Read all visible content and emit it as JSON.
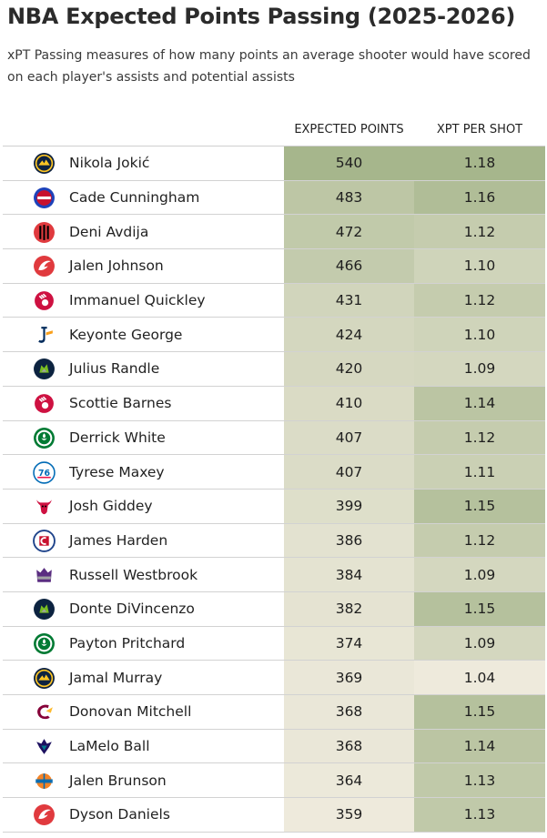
{
  "title": "NBA Expected Points Passing (2025-2026)",
  "subtitle": "xPT Passing measures of how many points an average shooter would have scored on each player's assists and potential assists",
  "columns": {
    "expected_points": "EXPECTED POINTS",
    "xpt_per_shot": "XPT PER SHOT"
  },
  "colors": {
    "low": "#eeeadc",
    "high": "#a6b68c",
    "text": "#222222"
  },
  "chart_data": {
    "type": "table",
    "title": "NBA Expected Points Passing (2025-2026)",
    "columns": [
      "EXPECTED POINTS",
      "XPT PER SHOT"
    ],
    "rows": [
      {
        "player": "Nikola Jokić",
        "team_logo": "denver-nuggets-logo",
        "expected_points": 540,
        "xpt_per_shot": "1.18"
      },
      {
        "player": "Cade Cunningham",
        "team_logo": "detroit-pistons-logo",
        "expected_points": 483,
        "xpt_per_shot": "1.16"
      },
      {
        "player": "Deni Avdija",
        "team_logo": "portland-trail-blazers-logo",
        "expected_points": 472,
        "xpt_per_shot": "1.12"
      },
      {
        "player": "Jalen Johnson",
        "team_logo": "atlanta-hawks-logo",
        "expected_points": 466,
        "xpt_per_shot": "1.10"
      },
      {
        "player": "Immanuel Quickley",
        "team_logo": "toronto-raptors-logo",
        "expected_points": 431,
        "xpt_per_shot": "1.12"
      },
      {
        "player": "Keyonte George",
        "team_logo": "utah-jazz-logo",
        "expected_points": 424,
        "xpt_per_shot": "1.10"
      },
      {
        "player": "Julius Randle",
        "team_logo": "minnesota-timberwolves-logo",
        "expected_points": 420,
        "xpt_per_shot": "1.09"
      },
      {
        "player": "Scottie Barnes",
        "team_logo": "toronto-raptors-logo",
        "expected_points": 410,
        "xpt_per_shot": "1.14"
      },
      {
        "player": "Derrick White",
        "team_logo": "boston-celtics-logo",
        "expected_points": 407,
        "xpt_per_shot": "1.12"
      },
      {
        "player": "Tyrese Maxey",
        "team_logo": "philadelphia-76ers-logo",
        "expected_points": 407,
        "xpt_per_shot": "1.11"
      },
      {
        "player": "Josh Giddey",
        "team_logo": "chicago-bulls-logo",
        "expected_points": 399,
        "xpt_per_shot": "1.15"
      },
      {
        "player": "James Harden",
        "team_logo": "la-clippers-logo",
        "expected_points": 386,
        "xpt_per_shot": "1.12"
      },
      {
        "player": "Russell Westbrook",
        "team_logo": "sacramento-kings-logo",
        "expected_points": 384,
        "xpt_per_shot": "1.09"
      },
      {
        "player": "Donte DiVincenzo",
        "team_logo": "minnesota-timberwolves-logo",
        "expected_points": 382,
        "xpt_per_shot": "1.15"
      },
      {
        "player": "Payton Pritchard",
        "team_logo": "boston-celtics-logo",
        "expected_points": 374,
        "xpt_per_shot": "1.09"
      },
      {
        "player": "Jamal Murray",
        "team_logo": "denver-nuggets-logo",
        "expected_points": 369,
        "xpt_per_shot": "1.04"
      },
      {
        "player": "Donovan Mitchell",
        "team_logo": "cleveland-cavaliers-logo",
        "expected_points": 368,
        "xpt_per_shot": "1.15"
      },
      {
        "player": "LaMelo Ball",
        "team_logo": "charlotte-hornets-logo",
        "expected_points": 368,
        "xpt_per_shot": "1.14"
      },
      {
        "player": "Jalen Brunson",
        "team_logo": "new-york-knicks-logo",
        "expected_points": 364,
        "xpt_per_shot": "1.13"
      },
      {
        "player": "Dyson Daniels",
        "team_logo": "atlanta-hawks-logo",
        "expected_points": 359,
        "xpt_per_shot": "1.13"
      }
    ]
  }
}
